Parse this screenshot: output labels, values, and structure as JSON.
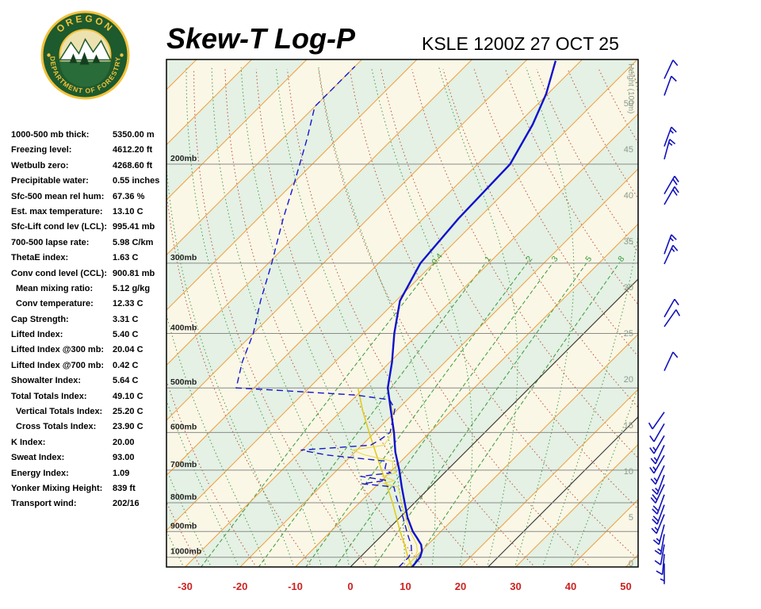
{
  "header": {
    "title": "Skew-T Log-P",
    "station": "KSLE 1200Z 27 OCT 25"
  },
  "logo": {
    "top_text": "OREGON",
    "bottom_text": "DEPARTMENT OF FORESTRY"
  },
  "indices": [
    {
      "label": "1000-500 mb thick:",
      "value": "5350.00 m",
      "indent": false
    },
    {
      "label": "Freezing level:",
      "value": "4612.20 ft",
      "indent": false
    },
    {
      "label": "Wetbulb zero:",
      "value": "4268.60 ft",
      "indent": false
    },
    {
      "label": "Precipitable water:",
      "value": "0.55 inches",
      "indent": false
    },
    {
      "label": "Sfc-500 mean rel hum:",
      "value": "67.36 %",
      "indent": false
    },
    {
      "label": "Est. max temperature:",
      "value": "13.10 C",
      "indent": false
    },
    {
      "label": "Sfc-Lift cond lev (LCL):",
      "value": "995.41 mb",
      "indent": false
    },
    {
      "label": "700-500 lapse rate:",
      "value": "5.98 C/km",
      "indent": false
    },
    {
      "label": "ThetaE index:",
      "value": "1.63 C",
      "indent": false
    },
    {
      "label": "Conv cond level (CCL):",
      "value": "900.81 mb",
      "indent": false
    },
    {
      "label": "Mean mixing ratio:",
      "value": "5.12 g/kg",
      "indent": true
    },
    {
      "label": "Conv temperature:",
      "value": "12.33 C",
      "indent": true
    },
    {
      "label": "Cap Strength:",
      "value": "3.31 C",
      "indent": false
    },
    {
      "label": "Lifted Index:",
      "value": "5.40 C",
      "indent": false
    },
    {
      "label": "Lifted Index @300 mb:",
      "value": "20.04 C",
      "indent": false
    },
    {
      "label": "Lifted Index @700 mb:",
      "value": "0.42 C",
      "indent": false
    },
    {
      "label": "Showalter Index:",
      "value": "5.64 C",
      "indent": false
    },
    {
      "label": "Total Totals Index:",
      "value": "49.10 C",
      "indent": false
    },
    {
      "label": "Vertical Totals Index:",
      "value": "25.20 C",
      "indent": true
    },
    {
      "label": "Cross Totals Index:",
      "value": "23.90 C",
      "indent": true
    },
    {
      "label": "K Index:",
      "value": "20.00",
      "indent": false
    },
    {
      "label": "Sweat Index:",
      "value": "93.00",
      "indent": false
    },
    {
      "label": "Energy Index:",
      "value": "1.09",
      "indent": false
    },
    {
      "label": "Yonker Mixing Height:",
      "value": "839 ft",
      "indent": false
    },
    {
      "label": "Transport wind:",
      "value": "202/16",
      "indent": false
    }
  ],
  "chart_data": {
    "type": "skew-t",
    "title": "Skew-T Log-P",
    "station": "KSLE 1200Z 27 OCT 25",
    "x_axis_ticks_c": [
      -30,
      -20,
      -10,
      0,
      10,
      20,
      30,
      40,
      50
    ],
    "pressure_levels_mb": [
      200,
      300,
      400,
      500,
      600,
      700,
      800,
      900,
      1000
    ],
    "pressure_label_suffix": "mb",
    "height_axis": {
      "title": "Height (100m)",
      "ticks": [
        0,
        5,
        10,
        15,
        20,
        25,
        30,
        35,
        40,
        45,
        50
      ]
    },
    "mixing_ratio_lines_gkg": [
      0.4,
      1,
      2,
      3,
      5,
      8
    ],
    "isotherm_step_c": 10,
    "black_isotherms_c": [
      0,
      25
    ],
    "temperature_profile_p_t": [
      [
        1041,
        11.2
      ],
      [
        1000,
        10.9
      ],
      [
        975,
        10.1
      ],
      [
        950,
        8.8
      ],
      [
        925,
        6.9
      ],
      [
        900,
        4.9
      ],
      [
        850,
        1.4
      ],
      [
        800,
        -1.8
      ],
      [
        750,
        -5.2
      ],
      [
        700,
        -8.7
      ],
      [
        650,
        -12.7
      ],
      [
        600,
        -16.5
      ],
      [
        550,
        -20.9
      ],
      [
        500,
        -25.7
      ],
      [
        450,
        -29.6
      ],
      [
        400,
        -34.4
      ],
      [
        350,
        -39.3
      ],
      [
        300,
        -42.4
      ],
      [
        250,
        -43.6
      ],
      [
        200,
        -44.1
      ],
      [
        170,
        -47.2
      ],
      [
        150,
        -50.3
      ],
      [
        131,
        -54.6
      ]
    ],
    "dewpoint_profile_p_t": [
      [
        1041,
        8.8
      ],
      [
        1000,
        8.8
      ],
      [
        975,
        8.2
      ],
      [
        950,
        7.0
      ],
      [
        925,
        5.4
      ],
      [
        900,
        3.8
      ],
      [
        850,
        0.6
      ],
      [
        800,
        -3.0
      ],
      [
        770,
        -5.2
      ],
      [
        750,
        -6.6
      ],
      [
        740,
        -13.0
      ],
      [
        730,
        -9.2
      ],
      [
        718,
        -14.6
      ],
      [
        708,
        -9.8
      ],
      [
        695,
        -11.6
      ],
      [
        675,
        -12.6
      ],
      [
        658,
        -24.6
      ],
      [
        645,
        -30.2
      ],
      [
        632,
        -18.4
      ],
      [
        615,
        -17.6
      ],
      [
        600,
        -17.2
      ],
      [
        570,
        -19.0
      ],
      [
        545,
        -20.6
      ],
      [
        525,
        -23.2
      ],
      [
        515,
        -30.0
      ],
      [
        505,
        -45.0
      ],
      [
        500,
        -53.2
      ],
      [
        450,
        -56.8
      ],
      [
        400,
        -60.0
      ],
      [
        350,
        -64.6
      ],
      [
        300,
        -69.4
      ],
      [
        250,
        -75.4
      ],
      [
        215,
        -80.0
      ],
      [
        180,
        -85.6
      ],
      [
        158,
        -90.0
      ],
      [
        134,
        -90.0
      ]
    ],
    "parcel_profile_p_t": [
      [
        1041,
        11.2
      ],
      [
        995,
        8.4
      ],
      [
        950,
        5.8
      ],
      [
        900,
        2.6
      ],
      [
        850,
        -0.6
      ],
      [
        800,
        -4.0
      ],
      [
        750,
        -7.8
      ],
      [
        700,
        -11.9
      ],
      [
        650,
        -16.3
      ],
      [
        600,
        -21.0
      ],
      [
        550,
        -26.0
      ],
      [
        500,
        -31.1
      ]
    ],
    "wind_barbs": [
      {
        "p": 141,
        "dir": 25,
        "spd": 10
      },
      {
        "p": 151,
        "dir": 20,
        "spd": 10
      },
      {
        "p": 186,
        "dir": 20,
        "spd": 15
      },
      {
        "p": 196,
        "dir": 15,
        "spd": 15
      },
      {
        "p": 226,
        "dir": 30,
        "spd": 20
      },
      {
        "p": 236,
        "dir": 30,
        "spd": 20
      },
      {
        "p": 289,
        "dir": 20,
        "spd": 15
      },
      {
        "p": 301,
        "dir": 25,
        "spd": 15
      },
      {
        "p": 374,
        "dir": 30,
        "spd": 10
      },
      {
        "p": 389,
        "dir": 35,
        "spd": 10
      },
      {
        "p": 466,
        "dir": 25,
        "spd": 10
      },
      {
        "p": 552,
        "dir": 215,
        "spd": 10
      },
      {
        "p": 579,
        "dir": 210,
        "spd": 10
      },
      {
        "p": 608,
        "dir": 210,
        "spd": 15
      },
      {
        "p": 632,
        "dir": 205,
        "spd": 15
      },
      {
        "p": 659,
        "dir": 210,
        "spd": 15
      },
      {
        "p": 687,
        "dir": 205,
        "spd": 15
      },
      {
        "p": 714,
        "dir": 200,
        "spd": 15
      },
      {
        "p": 742,
        "dir": 205,
        "spd": 20
      },
      {
        "p": 774,
        "dir": 200,
        "spd": 20
      },
      {
        "p": 807,
        "dir": 200,
        "spd": 20
      },
      {
        "p": 839,
        "dir": 202,
        "spd": 16
      },
      {
        "p": 875,
        "dir": 195,
        "spd": 15
      },
      {
        "p": 910,
        "dir": 190,
        "spd": 15
      },
      {
        "p": 949,
        "dir": 190,
        "spd": 10
      },
      {
        "p": 987,
        "dir": 185,
        "spd": 10
      },
      {
        "p": 1026,
        "dir": 180,
        "spd": 5
      }
    ],
    "colors": {
      "temperature": "#1111cc",
      "dewpoint": "#1616cc",
      "parcel": "#e0cc20",
      "wetbulb": "#e6d83a",
      "isotherm": "#f0a040",
      "black_line": "#333333",
      "dry_adiabat": "#c05040",
      "moist_adiabat": "#4a9a4a",
      "mixing_ratio": "#3a9a3a",
      "band_green": "#e4f1e4",
      "band_cream": "#faf7e6",
      "isobar": "#8a8a8a",
      "barb": "#1111bb",
      "axis_red": "#cc2222",
      "height_text": "#8b9a8b",
      "logo_green": "#1d5a2d",
      "logo_gold": "#f2c23a"
    }
  }
}
